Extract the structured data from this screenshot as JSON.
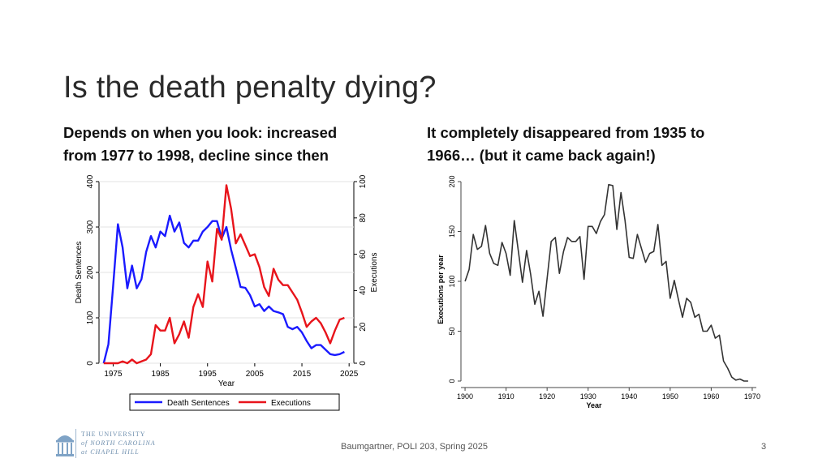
{
  "slide": {
    "title": "Is the death penalty dying?",
    "left_subtitle": [
      "Depends on when you look: increased",
      "from 1977 to 1998, decline since then"
    ],
    "right_subtitle": [
      "It completely disappeared from 1935 to",
      "1966… (but it came back again!)"
    ]
  },
  "footer": {
    "center_text": "Baumgartner, POLI 203, Spring 2025",
    "page_number": "3"
  },
  "logo": {
    "lines": [
      "THE UNIVERSITY",
      "of NORTH CAROLINA",
      "at CHAPEL HILL"
    ]
  },
  "chart_data": [
    {
      "type": "line",
      "title": "",
      "xlabel": "Year",
      "ylabel": "Death Sentences",
      "y2label": "Executions",
      "xlim": [
        1972,
        2026
      ],
      "ylim": [
        0,
        400
      ],
      "y2lim": [
        0,
        100
      ],
      "xticks": [
        1975,
        1985,
        1995,
        2005,
        2015,
        2025
      ],
      "yticks": [
        0,
        100,
        200,
        300,
        400
      ],
      "y2ticks": [
        0,
        20,
        40,
        60,
        80,
        100
      ],
      "grid": true,
      "legend": "bottom",
      "colors": {
        "Death Sentences": "#1a1aff",
        "Executions": "#e8141b"
      },
      "x": [
        1973,
        1974,
        1975,
        1976,
        1977,
        1978,
        1979,
        1980,
        1981,
        1982,
        1983,
        1984,
        1985,
        1986,
        1987,
        1988,
        1989,
        1990,
        1991,
        1992,
        1993,
        1994,
        1995,
        1996,
        1997,
        1998,
        1999,
        2000,
        2001,
        2002,
        2003,
        2004,
        2005,
        2006,
        2007,
        2008,
        2009,
        2010,
        2011,
        2012,
        2013,
        2014,
        2015,
        2016,
        2017,
        2018,
        2019,
        2020,
        2021,
        2022,
        2023,
        2024
      ],
      "series": [
        {
          "name": "Death Sentences",
          "axis": "left",
          "values": [
            0,
            42,
            170,
            306,
            255,
            165,
            215,
            165,
            185,
            245,
            280,
            255,
            290,
            280,
            325,
            290,
            310,
            265,
            255,
            270,
            270,
            290,
            300,
            313,
            313,
            275,
            300,
            250,
            210,
            168,
            166,
            150,
            125,
            130,
            115,
            125,
            115,
            112,
            108,
            80,
            75,
            80,
            68,
            49,
            33,
            40,
            40,
            30,
            20,
            18,
            20,
            25
          ]
        },
        {
          "name": "Executions",
          "axis": "right",
          "values": [
            0,
            0,
            0,
            0,
            1,
            0,
            2,
            0,
            1,
            2,
            5,
            21,
            18,
            18,
            25,
            11,
            16,
            23,
            14,
            31,
            38,
            31,
            56,
            45,
            74,
            68,
            98,
            85,
            66,
            71,
            65,
            59,
            60,
            53,
            42,
            37,
            52,
            46,
            43,
            43,
            39,
            35,
            28,
            20,
            23,
            25,
            22,
            17,
            11,
            18,
            24,
            25
          ]
        }
      ]
    },
    {
      "type": "line",
      "title": "",
      "xlabel": "Year",
      "ylabel": "Executions per year",
      "xlim": [
        1899,
        1971
      ],
      "ylim": [
        0,
        200
      ],
      "xticks": [
        1900,
        1910,
        1920,
        1930,
        1940,
        1950,
        1960,
        1970
      ],
      "yticks": [
        0,
        50,
        100,
        150,
        200
      ],
      "grid": false,
      "colors": {
        "line": "#333333"
      },
      "x": [
        1900,
        1901,
        1902,
        1903,
        1904,
        1905,
        1906,
        1907,
        1908,
        1909,
        1910,
        1911,
        1912,
        1913,
        1914,
        1915,
        1916,
        1917,
        1918,
        1919,
        1920,
        1921,
        1922,
        1923,
        1924,
        1925,
        1926,
        1927,
        1928,
        1929,
        1930,
        1931,
        1932,
        1933,
        1934,
        1935,
        1936,
        1937,
        1938,
        1939,
        1940,
        1941,
        1942,
        1943,
        1944,
        1945,
        1946,
        1947,
        1948,
        1949,
        1950,
        1951,
        1952,
        1953,
        1954,
        1955,
        1956,
        1957,
        1958,
        1959,
        1960,
        1961,
        1962,
        1963,
        1964,
        1965,
        1966,
        1967,
        1968,
        1969
      ],
      "series": [
        {
          "name": "",
          "values": [
            100,
            112,
            147,
            132,
            135,
            156,
            128,
            118,
            116,
            139,
            128,
            106,
            161,
            130,
            99,
            131,
            107,
            77,
            90,
            65,
            103,
            140,
            144,
            108,
            130,
            144,
            140,
            140,
            145,
            102,
            155,
            155,
            148,
            160,
            167,
            197,
            196,
            152,
            189,
            161,
            124,
            123,
            147,
            133,
            119,
            128,
            130,
            157,
            116,
            120,
            83,
            101,
            82,
            64,
            83,
            79,
            64,
            67,
            50,
            50,
            56,
            43,
            46,
            20,
            13,
            4,
            1,
            2,
            0,
            0
          ]
        }
      ]
    }
  ]
}
